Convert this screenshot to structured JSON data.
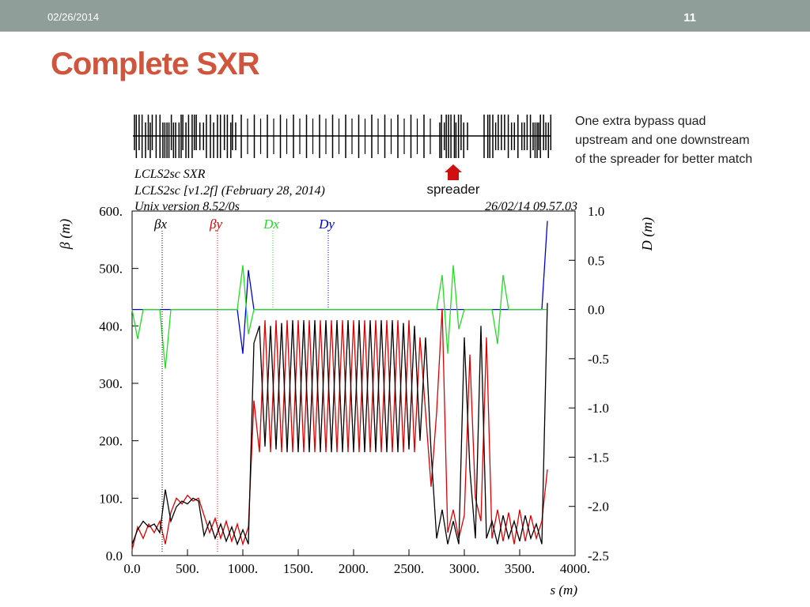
{
  "slide": {
    "date": "02/26/2014",
    "page": "11",
    "title": "Complete SXR",
    "note": [
      "One extra bypass quad",
      "upstream and one downstream",
      "of the spreader for better match"
    ],
    "arrow_label": "spreader"
  },
  "chart_data": {
    "type": "line",
    "header": [
      "LCLS2sc SXR",
      "LCLS2sc [v1.2f] (February 28, 2014)",
      "Unix version 8.52/0s",
      "26/02/14  09.57.03"
    ],
    "x_label": "s (m)",
    "y_label": "β  (m)",
    "y2_label": "D  (m)",
    "x": [
      0,
      50,
      100,
      150,
      200,
      250,
      300,
      350,
      400,
      450,
      500,
      550,
      600,
      650,
      700,
      750,
      800,
      850,
      900,
      950,
      1000,
      1050,
      1100,
      1150,
      1200,
      1250,
      1300,
      1350,
      1400,
      1450,
      1500,
      1550,
      1600,
      1650,
      1700,
      1750,
      1800,
      1850,
      1900,
      1950,
      2000,
      2050,
      2100,
      2150,
      2200,
      2250,
      2300,
      2350,
      2400,
      2450,
      2500,
      2550,
      2600,
      2650,
      2700,
      2750,
      2800,
      2850,
      2900,
      2950,
      3000,
      3050,
      3100,
      3150,
      3200,
      3250,
      3300,
      3350,
      3400,
      3450,
      3500,
      3550,
      3600,
      3650,
      3700,
      3750
    ],
    "series": [
      {
        "name": "βx",
        "color": "#000000",
        "values": [
          20,
          45,
          60,
          50,
          55,
          40,
          115,
          60,
          85,
          95,
          90,
          100,
          95,
          35,
          60,
          30,
          55,
          25,
          50,
          20,
          45,
          20,
          370,
          400,
          190,
          400,
          185,
          405,
          180,
          410,
          180,
          410,
          180,
          410,
          180,
          410,
          180,
          410,
          180,
          410,
          180,
          410,
          180,
          410,
          180,
          410,
          180,
          410,
          180,
          405,
          185,
          400,
          200,
          380,
          180,
          30,
          80,
          20,
          60,
          20,
          380,
          150,
          30,
          400,
          30,
          60,
          20,
          70,
          30,
          60,
          25,
          70,
          30,
          55,
          20,
          440
        ]
      },
      {
        "name": "βy",
        "color": "#e00000",
        "values": [
          10,
          50,
          30,
          55,
          40,
          60,
          20,
          75,
          100,
          90,
          105,
          95,
          100,
          70,
          40,
          65,
          30,
          60,
          25,
          55,
          20,
          50,
          270,
          180,
          410,
          180,
          410,
          180,
          410,
          180,
          410,
          180,
          410,
          180,
          410,
          180,
          410,
          180,
          410,
          180,
          410,
          180,
          410,
          180,
          410,
          180,
          410,
          180,
          410,
          180,
          410,
          180,
          380,
          250,
          120,
          250,
          430,
          40,
          80,
          30,
          70,
          350,
          100,
          60,
          380,
          30,
          80,
          25,
          75,
          20,
          80,
          25,
          70,
          30,
          60,
          150
        ]
      },
      {
        "name": "Dx",
        "color": "#22dd22",
        "axis": "y2",
        "values": [
          0,
          -0.3,
          0,
          0,
          0,
          0,
          -0.6,
          0,
          0,
          0,
          0,
          0,
          0,
          0,
          0,
          0,
          0,
          0,
          0,
          0,
          0.45,
          -0.25,
          0,
          0,
          0,
          0,
          0,
          0,
          0,
          0,
          0,
          0,
          0,
          0,
          0,
          0,
          0,
          0,
          0,
          0,
          0,
          0,
          0,
          0,
          0,
          0,
          0,
          0,
          0,
          0,
          0,
          0,
          0,
          0,
          0,
          0,
          0.35,
          -0.45,
          0.45,
          -0.2,
          0,
          0,
          0,
          0,
          0,
          0,
          -0.35,
          0.35,
          0,
          0,
          0,
          0,
          0,
          0,
          0,
          0
        ]
      },
      {
        "name": "Dy",
        "color": "#0000dd",
        "axis": "y2",
        "values": [
          0,
          0,
          0,
          0,
          0,
          0,
          0,
          0,
          0,
          0,
          0,
          0,
          0,
          0,
          0,
          0,
          0,
          0,
          0,
          0,
          -0.45,
          0.4,
          0,
          0,
          0,
          0,
          0,
          0,
          0,
          0,
          0,
          0,
          0,
          0,
          0,
          0,
          0,
          0,
          0,
          0,
          0,
          0,
          0,
          0,
          0,
          0,
          0,
          0,
          0,
          0,
          0,
          0,
          0,
          0,
          0,
          0,
          0,
          0,
          0,
          0,
          0,
          0,
          0,
          0,
          0,
          0,
          0,
          0,
          0,
          0,
          0,
          0,
          0,
          0,
          0,
          0.9
        ]
      }
    ],
    "xlim": [
      0,
      4000
    ],
    "xticks": [
      {
        "value": 0,
        "label": "0.0"
      },
      {
        "value": 500,
        "label": "500."
      },
      {
        "value": 1000,
        "label": "1000."
      },
      {
        "value": 1500,
        "label": "1500."
      },
      {
        "value": 2000,
        "label": "2000."
      },
      {
        "value": 2500,
        "label": "2500."
      },
      {
        "value": 3000,
        "label": "3000."
      },
      {
        "value": 3500,
        "label": "3500."
      },
      {
        "value": 4000,
        "label": "4000."
      }
    ],
    "ylim": [
      0,
      600
    ],
    "yticks": [
      {
        "value": 0,
        "label": "0.0"
      },
      {
        "value": 100,
        "label": "100."
      },
      {
        "value": 200,
        "label": "200."
      },
      {
        "value": 300,
        "label": "300."
      },
      {
        "value": 400,
        "label": "400."
      },
      {
        "value": 500,
        "label": "500."
      },
      {
        "value": 600,
        "label": "600."
      }
    ],
    "y2lim": [
      -2.5,
      1.0
    ],
    "y2ticks": [
      {
        "value": 1.0,
        "label": "1.0"
      },
      0.5,
      {
        "value": 0.0,
        "label": "0.0"
      },
      -0.5,
      {
        "value": -1.0,
        "label": "-1.0"
      },
      -1.5,
      {
        "value": -2.0,
        "label": "-2.0"
      },
      -2.5
    ]
  }
}
